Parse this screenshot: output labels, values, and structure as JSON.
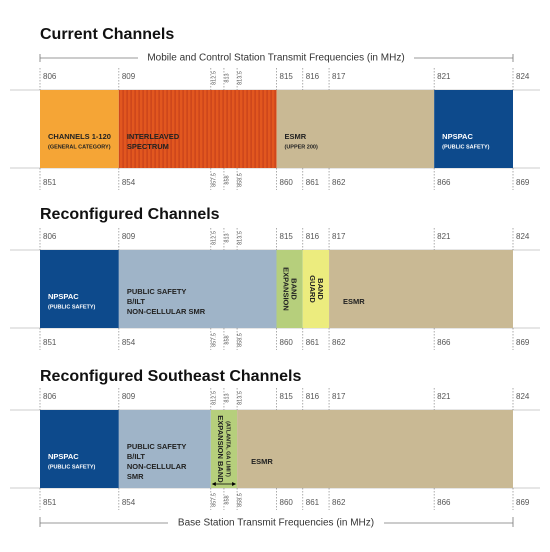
{
  "header": {
    "top_caption": "Mobile and Control Station Transmit Frequencies (in MHz)",
    "bottom_caption": "Base Station Transmit Frequencies (in MHz)"
  },
  "sections": [
    {
      "title": "Current Channels",
      "top_ticks": [
        806,
        809,
        812.5,
        813,
        813.5,
        815,
        816,
        817,
        821,
        824
      ],
      "bottom_ticks": [
        851,
        854,
        857.5,
        858,
        858.5,
        860,
        861,
        862,
        866,
        869
      ],
      "bands": [
        {
          "color": "#f5a536",
          "lines": [
            "CHANNELS 1-120",
            "(GENERAL CATEGORY)"
          ]
        },
        {
          "color": "#e2571f",
          "lines": [
            "INTERLEAVED",
            "SPECTRUM"
          ]
        },
        {
          "color": "#c9b994",
          "lines": [
            "ESMR",
            "(UPPER 200)"
          ]
        },
        {
          "color": "#0d4a8c",
          "lines": [
            "NPSPAC",
            "(PUBLIC SAFETY)"
          ]
        }
      ]
    },
    {
      "title": "Reconfigured Channels",
      "top_ticks": [
        806,
        809,
        812.5,
        813,
        813.5,
        815,
        816,
        817,
        821,
        824
      ],
      "bottom_ticks": [
        851,
        854,
        857.5,
        858,
        858.5,
        860,
        861,
        862,
        866,
        869
      ],
      "bands": [
        {
          "color": "#0d4a8c",
          "lines": [
            "NPSPAC",
            "(PUBLIC SAFETY)"
          ]
        },
        {
          "color": "#9fb4c8",
          "lines": [
            "PUBLIC SAFETY",
            "B/ILT",
            "NON-CELLULAR SMR"
          ]
        },
        {
          "color": "#b6cf7c",
          "lines": [
            "EXPANSION",
            "BAND"
          ]
        },
        {
          "color": "#ecec7e",
          "lines": [
            "GUARD",
            "BAND"
          ]
        },
        {
          "color": "#c9b994",
          "lines": [
            "ESMR"
          ]
        }
      ]
    },
    {
      "title": "Reconfigured Southeast Channels",
      "top_ticks": [
        806,
        809,
        812.5,
        813,
        813.5,
        815,
        816,
        817,
        821,
        824
      ],
      "bottom_ticks": [
        851,
        854,
        857.5,
        858,
        858.5,
        860,
        861,
        862,
        866,
        869
      ],
      "bands": [
        {
          "color": "#0d4a8c",
          "lines": [
            "NPSPAC",
            "(PUBLIC SAFETY)"
          ]
        },
        {
          "color": "#9fb4c8",
          "lines": [
            "PUBLIC SAFETY",
            "B/ILT",
            "NON-CELLULAR",
            "SMR"
          ]
        },
        {
          "color": "#b6cf7c",
          "lines": [
            "EXPANSION BAND",
            "(ATLANTA, GA LIMIT)"
          ]
        },
        {
          "color": "#c9b994",
          "lines": [
            "ESMR"
          ]
        }
      ]
    }
  ]
}
